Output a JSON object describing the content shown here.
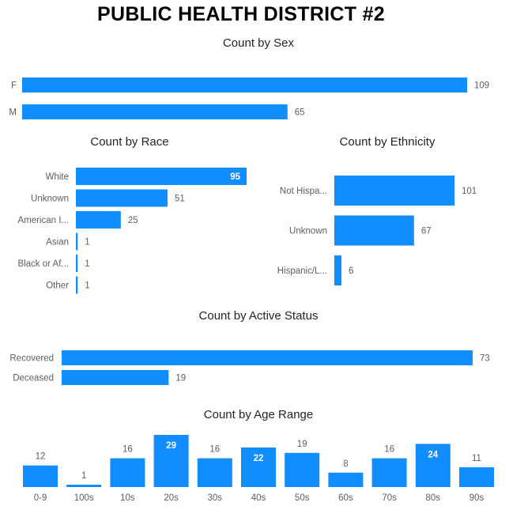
{
  "page": {
    "title": "PUBLIC HEALTH DISTRICT #2"
  },
  "colors": {
    "bar": "#118DFF",
    "label": "#605e5c",
    "title": "#252423"
  },
  "chart_data": [
    {
      "id": "sex",
      "type": "bar",
      "orientation": "horizontal",
      "title": "Count by Sex",
      "categories": [
        "F",
        "M"
      ],
      "values": [
        109,
        65
      ],
      "xlim": [
        0,
        109
      ]
    },
    {
      "id": "race",
      "type": "bar",
      "orientation": "horizontal",
      "title": "Count by Race",
      "categories": [
        "White",
        "Unknown",
        "American I...",
        "Asian",
        "Black or Af...",
        "Other"
      ],
      "values": [
        95,
        51,
        25,
        1,
        1,
        1
      ],
      "xlim": [
        0,
        95
      ]
    },
    {
      "id": "ethnicity",
      "type": "bar",
      "orientation": "horizontal",
      "title": "Count by Ethnicity",
      "categories": [
        "Not Hispa...",
        "Unknown",
        "Hispanic/L..."
      ],
      "values": [
        101,
        67,
        6
      ],
      "xlim": [
        0,
        101
      ]
    },
    {
      "id": "active",
      "type": "bar",
      "orientation": "horizontal",
      "title": "Count by Active Status",
      "categories": [
        "Recovered",
        "Deceased"
      ],
      "values": [
        73,
        19
      ],
      "xlim": [
        0,
        73
      ]
    },
    {
      "id": "age",
      "type": "bar",
      "orientation": "vertical",
      "title": "Count by Age Range",
      "categories": [
        "0-9",
        "100s",
        "10s",
        "20s",
        "30s",
        "40s",
        "50s",
        "60s",
        "70s",
        "80s",
        "90s"
      ],
      "values": [
        12,
        1,
        16,
        29,
        16,
        22,
        19,
        8,
        16,
        24,
        11
      ],
      "ylim": [
        0,
        29
      ]
    }
  ]
}
